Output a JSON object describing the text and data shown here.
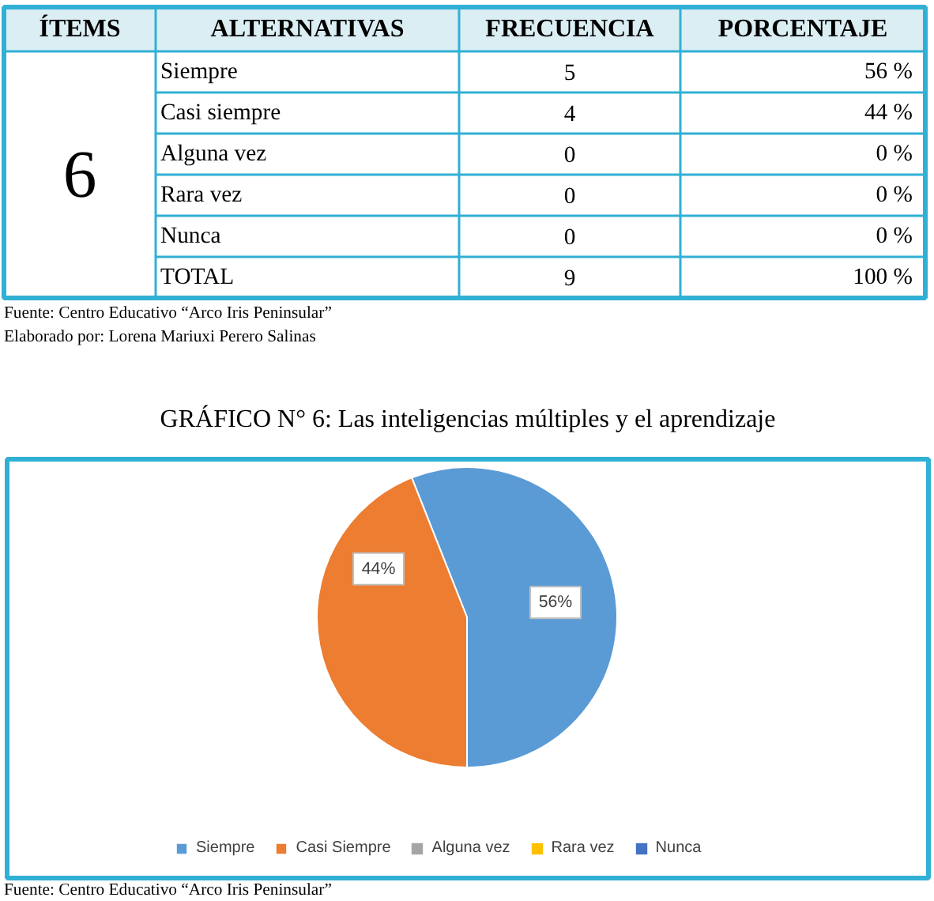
{
  "chart_data": [
    {
      "type": "other",
      "annotations": [
        "ÍTEMS",
        "ALTERNATIVAS",
        "FRECUENCIA",
        "PORCENTAJE",
        "6",
        "Siempre",
        "5",
        "56 %",
        "Casi siempre",
        "4",
        "44 %",
        "Alguna vez",
        "0",
        "0 %",
        "Rara vez",
        "0",
        "0 %",
        "Nunca",
        "0",
        "0 %",
        "TOTAL",
        "9",
        "100 %",
        "Fuente: Centro Educativo “Arco Iris Peninsular”",
        "Elaborado por: Lorena Mariuxi Perero Salinas"
      ]
    },
    {
      "type": "pie",
      "title": "GRÁFICO N° 6: Las inteligencias múltiples y el aprendizaje",
      "categories": [
        "Siempre",
        "Casi Siempre",
        "Alguna vez",
        "Rara vez",
        "Nunca"
      ],
      "values": [
        56,
        44,
        0,
        0,
        0
      ],
      "colors": [
        "#5b9bd5",
        "#ed7d31",
        "#a5a5a5",
        "#ffc000",
        "#4472c4"
      ],
      "value_labels": [
        "56%",
        "44%",
        null,
        null,
        null
      ],
      "legend": "bottom",
      "annotations": [
        "Fuente: Centro Educativo “Arco Iris Peninsular”"
      ]
    }
  ]
}
